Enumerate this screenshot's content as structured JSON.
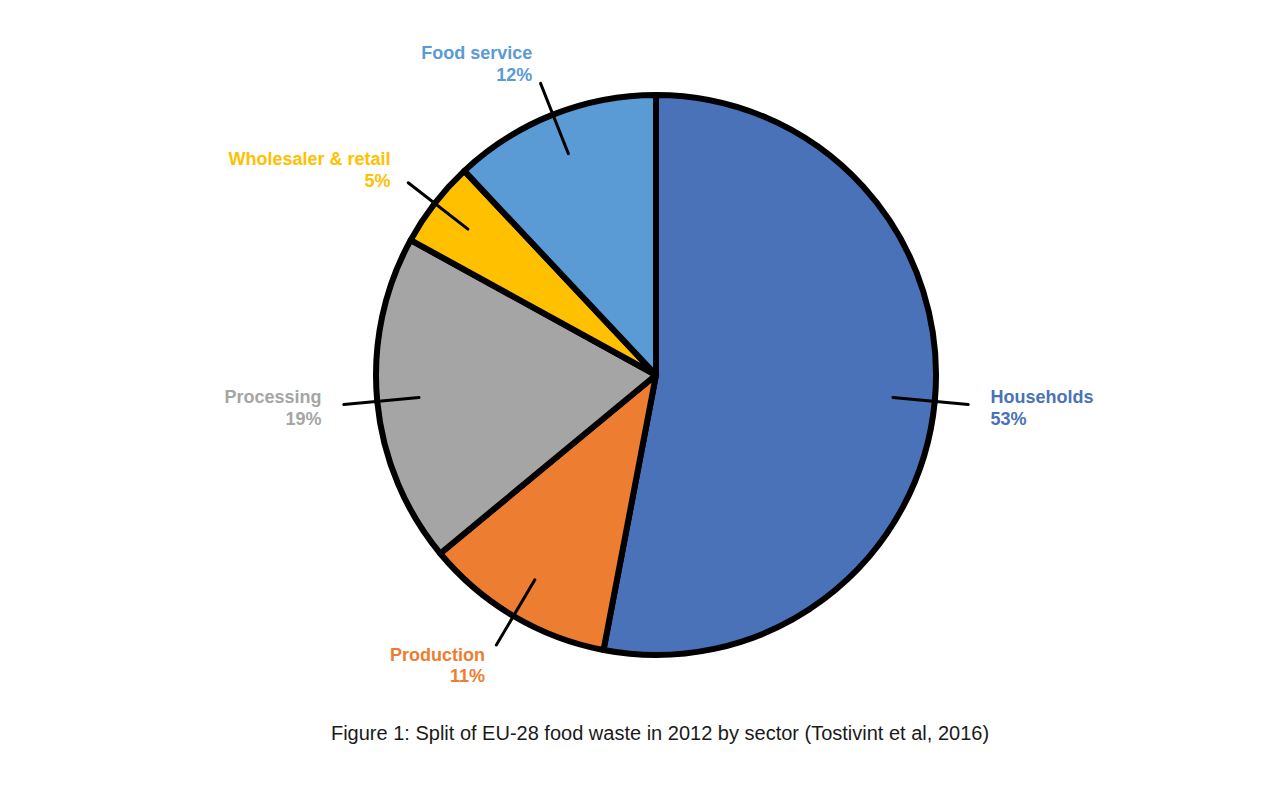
{
  "chart_data": {
    "type": "pie",
    "title": "Figure 1: Split of EU-28 food waste in 2012 by sector (Tostivint et al, 2016)",
    "categories": [
      "Households",
      "Production",
      "Processing",
      "Wholesaler & retail",
      "Food service"
    ],
    "values": [
      53,
      11,
      19,
      5,
      12
    ],
    "value_labels": [
      "53%",
      "11%",
      "19%",
      "5%",
      "12%"
    ],
    "colors": [
      "#4a72b8",
      "#ed7d31",
      "#a5a5a5",
      "#ffc000",
      "#5b9bd5"
    ],
    "data_labels": true
  }
}
